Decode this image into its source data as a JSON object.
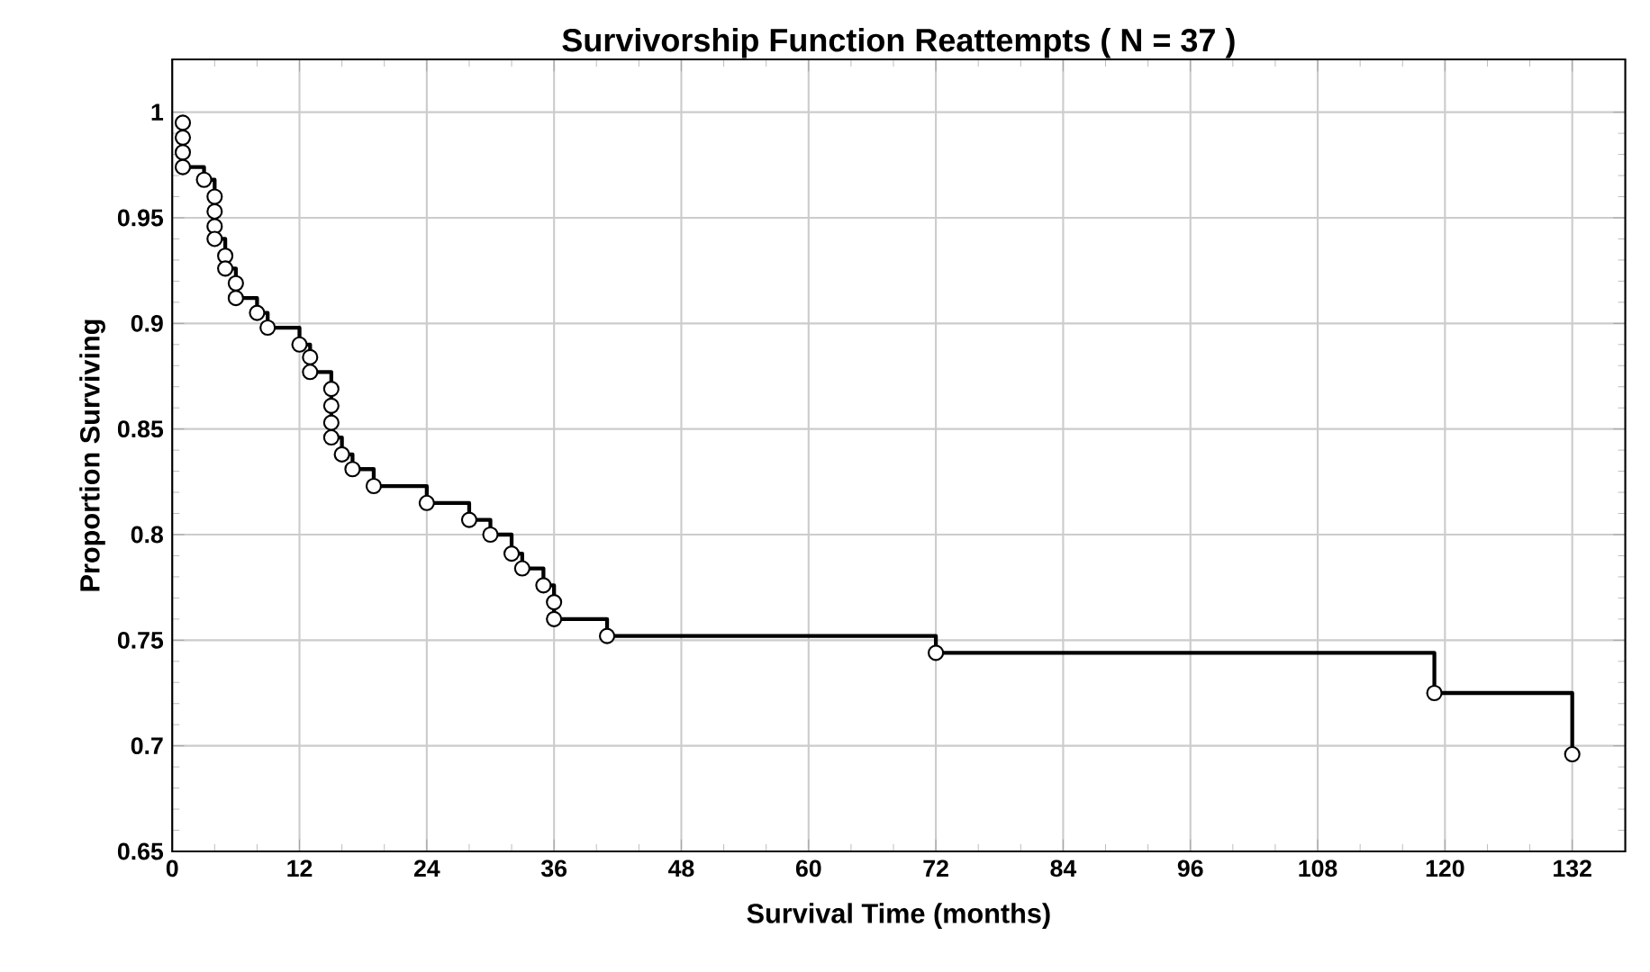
{
  "chart_data": {
    "type": "step",
    "title": "Survivorship Function Reattempts  ( N = 37 )",
    "xlabel": "Survival Time (months)",
    "ylabel": "Proportion Surviving",
    "series": [
      {
        "color": "#000000",
        "x": [
          1,
          1,
          1,
          1,
          3,
          4,
          4,
          4,
          4,
          5,
          5,
          6,
          6,
          8,
          9,
          12,
          13,
          13,
          15,
          15,
          15,
          15,
          16,
          17,
          19,
          24,
          28,
          30,
          32,
          33,
          35,
          36,
          36,
          41,
          72,
          119,
          132
        ],
        "values": [
          0.995,
          0.988,
          0.981,
          0.974,
          0.968,
          0.96,
          0.953,
          0.946,
          0.94,
          0.932,
          0.926,
          0.919,
          0.912,
          0.905,
          0.898,
          0.89,
          0.884,
          0.877,
          0.869,
          0.861,
          0.853,
          0.846,
          0.838,
          0.831,
          0.823,
          0.815,
          0.807,
          0.8,
          0.791,
          0.784,
          0.776,
          0.768,
          0.76,
          0.752,
          0.744,
          0.725,
          0.696
        ]
      }
    ],
    "xlim": [
      0,
      137
    ],
    "ylim": [
      0.65,
      1.025
    ],
    "xticks": [
      0,
      12,
      24,
      36,
      48,
      60,
      72,
      84,
      96,
      108,
      120,
      132
    ],
    "yticks": [
      0.65,
      0.7,
      0.75,
      0.8,
      0.85,
      0.9,
      0.95,
      1
    ],
    "grid": true,
    "marker": "circle",
    "line_style": "solid"
  }
}
